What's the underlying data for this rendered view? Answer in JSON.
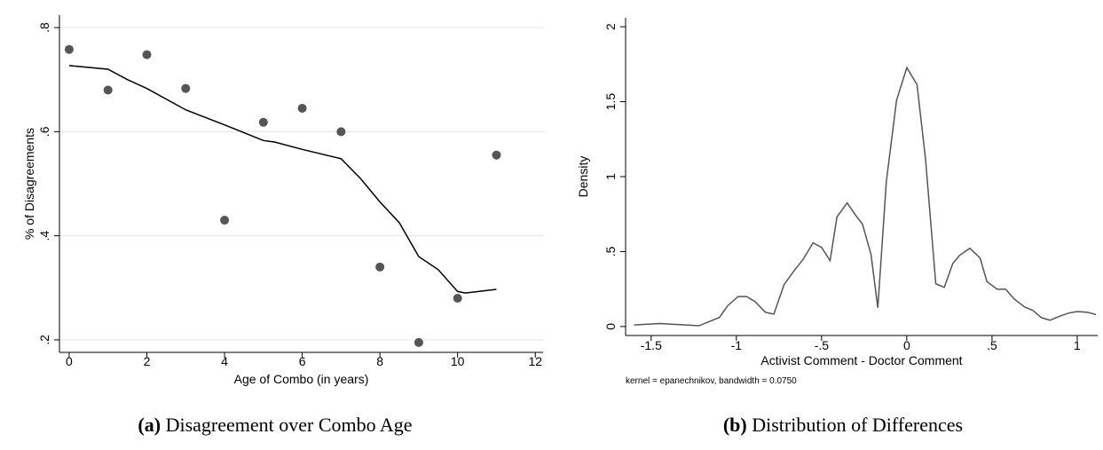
{
  "chart_data": [
    {
      "type": "scatter",
      "caption_label": "(a)",
      "caption": "Disagreement over Combo Age",
      "xlabel": "Age of Combo (in years)",
      "ylabel": "% of Disagreements",
      "xlim": [
        -0.25,
        12.2
      ],
      "ylim": [
        0.176,
        0.824
      ],
      "xticks": [
        0,
        2,
        4,
        6,
        8,
        10,
        12
      ],
      "yticks": [
        {
          "value": 0.2,
          "label": ".2"
        },
        {
          "value": 0.4,
          "label": ".4"
        },
        {
          "value": 0.6,
          "label": ".6"
        },
        {
          "value": 0.8,
          "label": ".8"
        }
      ],
      "grid": true,
      "series": [
        {
          "type": "scatter",
          "color": "#555555",
          "x": [
            0,
            1,
            2,
            3,
            4,
            5,
            6,
            7,
            8,
            9,
            10,
            11
          ],
          "values": [
            0.758,
            0.68,
            0.748,
            0.683,
            0.43,
            0.618,
            0.645,
            0.6,
            0.34,
            0.195,
            0.28,
            0.555
          ]
        },
        {
          "type": "line",
          "color": "#000000",
          "x": [
            0,
            1,
            1.5,
            2,
            3,
            4,
            5,
            5.3,
            6,
            7,
            7.5,
            8,
            8.5,
            9,
            9.5,
            10,
            10.2,
            11
          ],
          "values": [
            0.727,
            0.72,
            0.7,
            0.683,
            0.642,
            0.613,
            0.583,
            0.58,
            0.566,
            0.548,
            0.51,
            0.465,
            0.425,
            0.36,
            0.335,
            0.293,
            0.29,
            0.297
          ]
        }
      ]
    },
    {
      "type": "line",
      "caption_label": "(b)",
      "caption": "Distribution of Differences",
      "xlabel": "Activist Comment - Doctor Comment",
      "ylabel": "Density",
      "note": "kernel = epanechnikov, bandwidth = 0.0750",
      "xlim": [
        -1.65,
        1.12
      ],
      "ylim": [
        -0.06,
        2.06
      ],
      "xticks": [
        -1.5,
        -1,
        {
          "value": -0.5,
          "label": "-.5"
        },
        0,
        {
          "value": 0.5,
          "label": ".5"
        },
        1
      ],
      "yticks": [
        0,
        {
          "value": 0.5,
          "label": ".5"
        },
        1,
        1.5,
        2
      ],
      "grid": false,
      "series": [
        {
          "type": "line",
          "color": "#555555",
          "x": [
            -1.6,
            -1.45,
            -1.22,
            -1.1,
            -1.05,
            -0.99,
            -0.94,
            -0.89,
            -0.83,
            -0.78,
            -0.72,
            -0.66,
            -0.61,
            -0.55,
            -0.5,
            -0.45,
            -0.41,
            -0.35,
            -0.3,
            -0.26,
            -0.21,
            -0.17,
            -0.12,
            -0.06,
            0,
            0.06,
            0.11,
            0.17,
            0.22,
            0.27,
            0.31,
            0.37,
            0.43,
            0.47,
            0.53,
            0.58,
            0.63,
            0.69,
            0.74,
            0.79,
            0.84,
            0.9,
            0.95,
            1,
            1.06,
            1.11
          ],
          "values": [
            0.01,
            0.02,
            0.005,
            0.06,
            0.14,
            0.2,
            0.2,
            0.166,
            0.095,
            0.083,
            0.28,
            0.374,
            0.445,
            0.558,
            0.528,
            0.439,
            0.73,
            0.825,
            0.742,
            0.683,
            0.481,
            0.125,
            0.968,
            1.51,
            1.727,
            1.614,
            1.116,
            0.285,
            0.261,
            0.421,
            0.475,
            0.522,
            0.457,
            0.3,
            0.249,
            0.249,
            0.184,
            0.131,
            0.107,
            0.059,
            0.042,
            0.07,
            0.09,
            0.1,
            0.095,
            0.08
          ]
        }
      ]
    }
  ]
}
